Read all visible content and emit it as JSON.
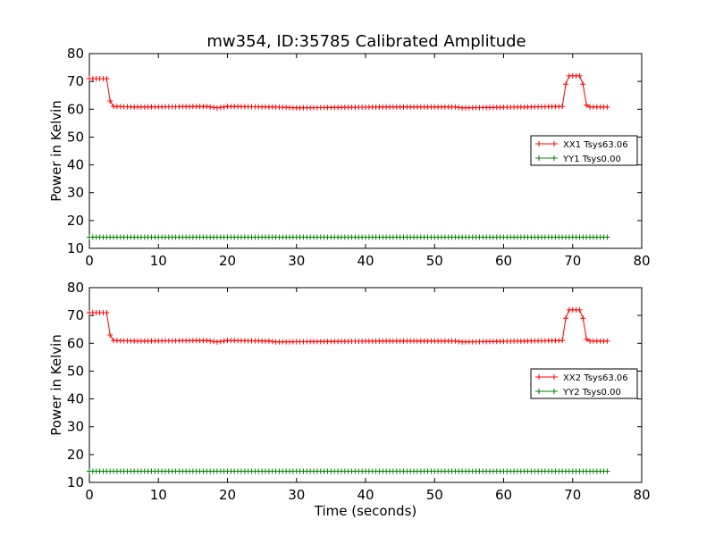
{
  "figure": {
    "title": "mw354, ID:35785 Calibrated Amplitude"
  },
  "chart_data": [
    {
      "type": "line",
      "title": "mw354, ID:35785 Calibrated Amplitude",
      "xlabel": "",
      "ylabel": "Power in Kelvin",
      "xlim": [
        0,
        80
      ],
      "ylim": [
        10,
        80
      ],
      "xticks": [
        0,
        10,
        20,
        30,
        40,
        50,
        60,
        70,
        80
      ],
      "yticks": [
        10,
        20,
        30,
        40,
        50,
        60,
        70,
        80
      ],
      "legend_position": "right",
      "series": [
        {
          "name": "XX1 Tsys63.06",
          "color": "#ff0000",
          "marker": "plus",
          "points": [
            [
              0,
              71
            ],
            [
              0.5,
              71
            ],
            [
              1,
              71
            ],
            [
              1.5,
              71
            ],
            [
              2,
              71
            ],
            [
              2.5,
              71
            ],
            [
              3,
              63
            ],
            [
              3.5,
              61
            ],
            [
              7,
              60.8
            ],
            [
              17,
              61
            ],
            [
              18.5,
              60.5
            ],
            [
              20,
              61
            ],
            [
              27,
              60.8
            ],
            [
              30,
              60.5
            ],
            [
              42,
              60.8
            ],
            [
              53,
              60.8
            ],
            [
              54,
              60.5
            ],
            [
              68.5,
              61
            ],
            [
              69,
              69
            ],
            [
              69.5,
              72
            ],
            [
              70,
              72
            ],
            [
              70.5,
              72
            ],
            [
              71,
              72
            ],
            [
              71.5,
              69
            ],
            [
              72,
              61.5
            ],
            [
              72.5,
              60.8
            ],
            [
              75,
              60.8
            ]
          ]
        },
        {
          "name": "YY1 Tsys0.00",
          "color": "#008000",
          "marker": "plus",
          "points": [
            [
              0,
              14
            ],
            [
              75,
              14
            ]
          ]
        }
      ]
    },
    {
      "type": "line",
      "xlabel": "Time (seconds)",
      "ylabel": "Power in Kelvin",
      "xlim": [
        0,
        80
      ],
      "ylim": [
        10,
        80
      ],
      "xticks": [
        0,
        10,
        20,
        30,
        40,
        50,
        60,
        70,
        80
      ],
      "yticks": [
        10,
        20,
        30,
        40,
        50,
        60,
        70,
        80
      ],
      "legend_position": "right",
      "series": [
        {
          "name": "XX2 Tsys63.06",
          "color": "#ff0000",
          "marker": "plus",
          "points": [
            [
              0,
              71
            ],
            [
              0.5,
              71
            ],
            [
              1,
              71
            ],
            [
              1.5,
              71
            ],
            [
              2,
              71
            ],
            [
              2.5,
              71
            ],
            [
              3,
              63
            ],
            [
              3.5,
              61
            ],
            [
              7,
              60.8
            ],
            [
              17,
              61
            ],
            [
              18.5,
              60.5
            ],
            [
              20,
              61
            ],
            [
              26,
              60.8
            ],
            [
              27,
              60.5
            ],
            [
              42,
              60.8
            ],
            [
              53,
              60.8
            ],
            [
              54,
              60.5
            ],
            [
              68.5,
              61
            ],
            [
              69,
              69
            ],
            [
              69.5,
              72
            ],
            [
              70,
              72
            ],
            [
              70.5,
              72
            ],
            [
              71,
              72
            ],
            [
              71.5,
              69
            ],
            [
              72,
              61.5
            ],
            [
              72.5,
              60.8
            ],
            [
              75,
              60.8
            ]
          ]
        },
        {
          "name": "YY2 Tsys0.00",
          "color": "#008000",
          "marker": "plus",
          "points": [
            [
              0,
              14
            ],
            [
              75,
              14
            ]
          ]
        }
      ]
    }
  ]
}
